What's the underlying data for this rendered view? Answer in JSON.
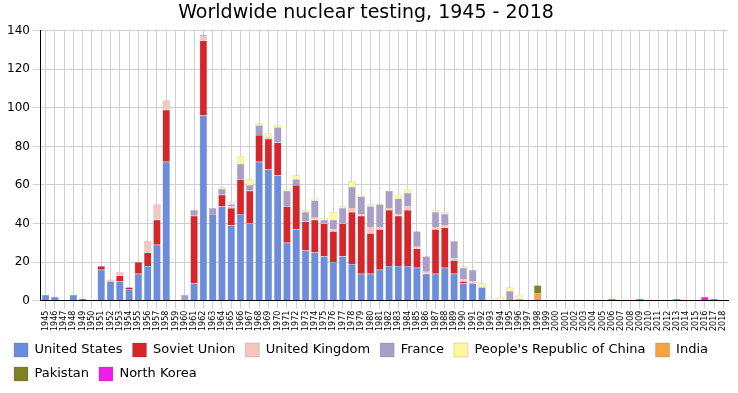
{
  "chart_data": {
    "type": "bar",
    "title": "Worldwide nuclear testing, 1945 - 2018",
    "categories": [
      "1945",
      "1946",
      "1947",
      "1948",
      "1949",
      "1950",
      "1951",
      "1952",
      "1953",
      "1954",
      "1955",
      "1956",
      "1957",
      "1958",
      "1959",
      "1960",
      "1961",
      "1962",
      "1963",
      "1964",
      "1965",
      "1966",
      "1967",
      "1968",
      "1969",
      "1970",
      "1971",
      "1972",
      "1973",
      "1974",
      "1975",
      "1976",
      "1977",
      "1978",
      "1979",
      "1980",
      "1981",
      "1982",
      "1983",
      "1984",
      "1985",
      "1986",
      "1987",
      "1988",
      "1989",
      "1990",
      "1991",
      "1992",
      "1993",
      "1994",
      "1995",
      "1996",
      "1997",
      "1998",
      "1999",
      "2000",
      "2001",
      "2002",
      "2003",
      "2004",
      "2005",
      "2006",
      "2007",
      "2008",
      "2009",
      "2010",
      "2011",
      "2012",
      "2013",
      "2014",
      "2015",
      "2016",
      "2017",
      "2018"
    ],
    "series": [
      {
        "name": "United States",
        "color": "#6b8ddb",
        "values": [
          3,
          2,
          0,
          3,
          0,
          0,
          16,
          10,
          10,
          6,
          14,
          18,
          29,
          72,
          0,
          0,
          9,
          96,
          45,
          49,
          39,
          45,
          40,
          72,
          68,
          65,
          30,
          37,
          26,
          25,
          23,
          20,
          23,
          19,
          14,
          14,
          16,
          18,
          18,
          18,
          17,
          14,
          14,
          17,
          14,
          9,
          9,
          7,
          0,
          0,
          0,
          0,
          0,
          0,
          0,
          0,
          0,
          0,
          0,
          0,
          0,
          0,
          0,
          0,
          0,
          0,
          0,
          0,
          0,
          0,
          0,
          0,
          0,
          0
        ]
      },
      {
        "name": "Soviet Union",
        "color": "#d7262b",
        "values": [
          0,
          0,
          0,
          0,
          1,
          0,
          2,
          0,
          3,
          1,
          6,
          7,
          13,
          27,
          0,
          0,
          35,
          39,
          0,
          6,
          9,
          18,
          17,
          14,
          16,
          17,
          19,
          23,
          15,
          17,
          17,
          16,
          17,
          27,
          30,
          21,
          21,
          29,
          26,
          29,
          10,
          0,
          23,
          21,
          7,
          1,
          0,
          0,
          0,
          0,
          0,
          0,
          0,
          0,
          0,
          0,
          0,
          0,
          0,
          0,
          0,
          0,
          0,
          0,
          0,
          0,
          0,
          0,
          0,
          0,
          0,
          0,
          0,
          0
        ]
      },
      {
        "name": "United Kingdom",
        "color": "#f4c6bd",
        "values": [
          0,
          0,
          0,
          0,
          0,
          0,
          0,
          1,
          2,
          0,
          0,
          6,
          8,
          5,
          0,
          0,
          0,
          2,
          0,
          0,
          1,
          0,
          0,
          0,
          1,
          0,
          0,
          0,
          0,
          1,
          0,
          1,
          0,
          2,
          1,
          3,
          1,
          1,
          1,
          2,
          1,
          1,
          1,
          1,
          1,
          1,
          1,
          0,
          0,
          0,
          0,
          0,
          0,
          0,
          0,
          0,
          0,
          0,
          0,
          0,
          0,
          0,
          0,
          0,
          0,
          0,
          0,
          0,
          0,
          0,
          0,
          0,
          0,
          0
        ]
      },
      {
        "name": "France",
        "color": "#a99fc6",
        "values": [
          0,
          0,
          0,
          0,
          0,
          0,
          0,
          0,
          0,
          0,
          0,
          0,
          0,
          0,
          0,
          3,
          3,
          1,
          3,
          3,
          1,
          8,
          3,
          5,
          0,
          8,
          8,
          3,
          5,
          9,
          2,
          5,
          8,
          11,
          9,
          11,
          12,
          9,
          8,
          7,
          8,
          8,
          8,
          6,
          9,
          6,
          6,
          0,
          0,
          0,
          5,
          1,
          0,
          0,
          0,
          0,
          0,
          0,
          0,
          0,
          0,
          0,
          0,
          0,
          0,
          0,
          0,
          0,
          0,
          0,
          0,
          0,
          0,
          0
        ]
      },
      {
        "name": "People's Republic of China",
        "color": "#fff6a0",
        "values": [
          0,
          0,
          0,
          0,
          0,
          0,
          0,
          0,
          0,
          0,
          0,
          0,
          0,
          0,
          0,
          0,
          0,
          0,
          0,
          1,
          1,
          4,
          3,
          1,
          2,
          1,
          1,
          2,
          1,
          1,
          1,
          4,
          1,
          3,
          1,
          1,
          0,
          0,
          2,
          2,
          0,
          0,
          1,
          1,
          0,
          1,
          0,
          2,
          1,
          2,
          2,
          2,
          0,
          0,
          0,
          0,
          0,
          0,
          0,
          0,
          0,
          0,
          0,
          0,
          0,
          0,
          0,
          0,
          0,
          0,
          0,
          0,
          0,
          0
        ]
      },
      {
        "name": "India",
        "color": "#f5a23f",
        "values": [
          0,
          0,
          0,
          0,
          0,
          0,
          0,
          0,
          0,
          0,
          0,
          0,
          0,
          0,
          0,
          0,
          0,
          0,
          0,
          0,
          0,
          0,
          0,
          0,
          0,
          0,
          0,
          0,
          0,
          0,
          0,
          0,
          0,
          0,
          0,
          0,
          0,
          0,
          0,
          0,
          0,
          0,
          0,
          0,
          0,
          0,
          0,
          0,
          0,
          0,
          0,
          0,
          0,
          4,
          0,
          0,
          0,
          0,
          0,
          0,
          0,
          0,
          0,
          0,
          0,
          0,
          0,
          0,
          0,
          0,
          0,
          0,
          0,
          0
        ]
      },
      {
        "name": "Pakistan",
        "color": "#808024",
        "values": [
          0,
          0,
          0,
          0,
          0,
          0,
          0,
          0,
          0,
          0,
          0,
          0,
          0,
          0,
          0,
          0,
          0,
          0,
          0,
          0,
          0,
          0,
          0,
          0,
          0,
          0,
          0,
          0,
          0,
          0,
          0,
          0,
          0,
          0,
          0,
          0,
          0,
          0,
          0,
          0,
          0,
          0,
          0,
          0,
          0,
          0,
          0,
          0,
          0,
          0,
          0,
          0,
          0,
          4,
          0,
          0,
          0,
          0,
          0,
          0,
          0,
          0,
          0,
          0,
          0,
          0,
          0,
          0,
          0,
          0,
          0,
          0,
          0,
          0
        ]
      },
      {
        "name": "North Korea",
        "color": "#ee1ee6",
        "values": [
          0,
          0,
          0,
          0,
          0,
          0,
          0,
          0,
          0,
          0,
          0,
          0,
          0,
          0,
          0,
          0,
          0,
          0,
          0,
          0,
          0,
          0,
          0,
          0,
          0,
          0,
          0,
          0,
          0,
          0,
          0,
          0,
          0,
          0,
          0,
          0,
          0,
          0,
          0,
          0,
          0,
          0,
          0,
          0,
          0,
          0,
          0,
          0,
          0,
          0,
          0,
          0,
          0,
          0,
          0,
          0,
          0,
          0,
          0,
          0,
          0,
          1,
          0,
          0,
          1,
          0,
          0,
          0,
          1,
          0,
          0,
          2,
          1,
          0
        ]
      }
    ],
    "ylim": [
      0,
      140
    ],
    "yticks": [
      0,
      20,
      40,
      60,
      80,
      100,
      120,
      140
    ],
    "stacked": true,
    "grid": true,
    "legend": "bottom"
  }
}
